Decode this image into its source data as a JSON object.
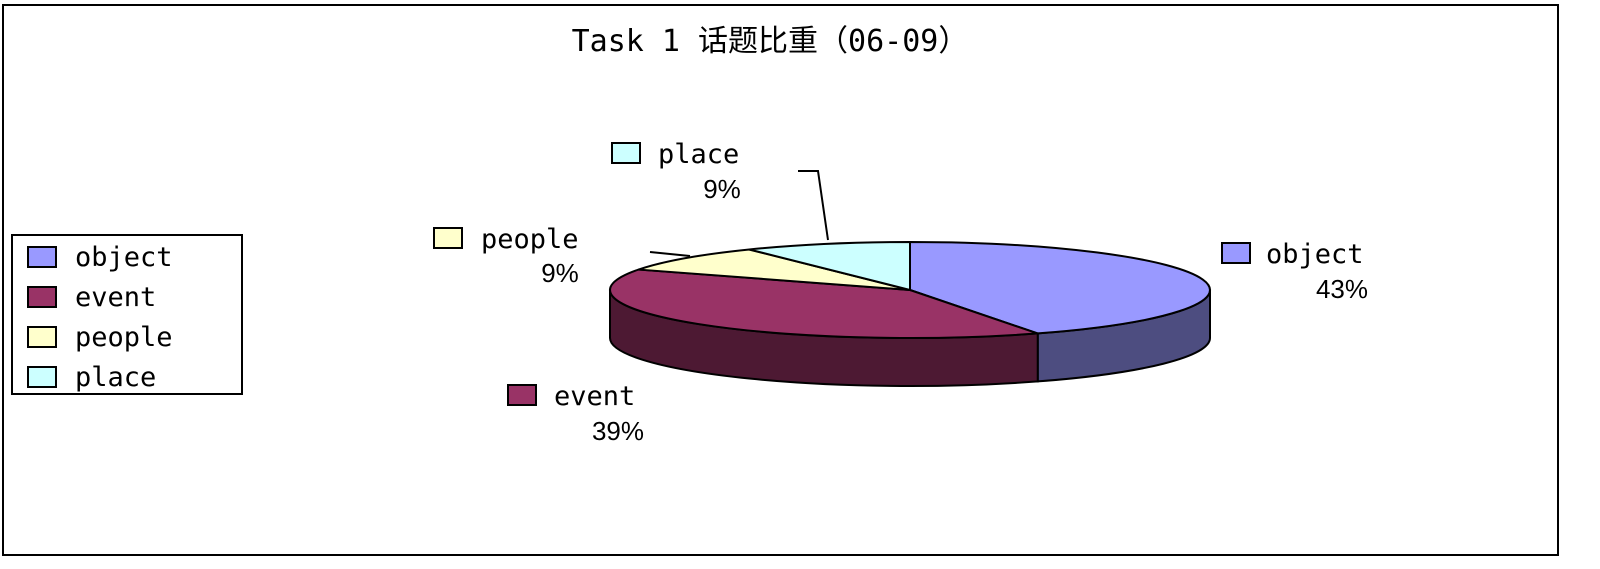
{
  "chart_data": {
    "type": "pie",
    "title": "Task 1 话题比重（06-09）",
    "categories": [
      "object",
      "event",
      "people",
      "place"
    ],
    "values": [
      43,
      39,
      9,
      9
    ],
    "value_labels": [
      "43%",
      "39%",
      "9%",
      "9%"
    ],
    "colors": [
      "#9999ff",
      "#993366",
      "#ffffcc",
      "#ccffff"
    ],
    "side_colors": [
      "#4d4d80",
      "#4d1933",
      "#80806a",
      "#6a8080"
    ],
    "legend_position": "left",
    "style": "3d-exploded-labels"
  }
}
